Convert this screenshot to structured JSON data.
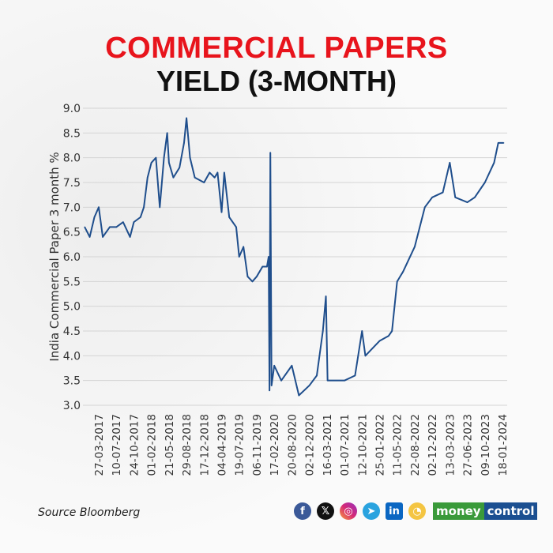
{
  "title_line1": "COMMERCIAL PAPERS",
  "title_line2": "YIELD (3-MONTH)",
  "source": "Source Bloomberg",
  "brand": {
    "part1": "money",
    "part2": "control"
  },
  "social_icons": [
    "facebook-icon",
    "x-icon",
    "instagram-icon",
    "telegram-icon",
    "linkedin-icon",
    "koo-icon"
  ],
  "colors": {
    "title_red": "#e8141c",
    "line": "#1f4e8c"
  },
  "chart_data": {
    "type": "line",
    "title": "COMMERCIAL PAPERS YIELD (3-MONTH)",
    "ylabel": "India Commercial Paper 3 month %",
    "xlabel": "",
    "ylim": [
      3.0,
      9.0
    ],
    "yticks": [
      "3.0",
      "3.5",
      "4.0",
      "4.5",
      "5.0",
      "5.5",
      "6.0",
      "6.5",
      "7.0",
      "7.5",
      "8.0",
      "8.5",
      "9.0"
    ],
    "xticks": [
      "27-03-2017",
      "10-07-2017",
      "24-10-2017",
      "01-02-2018",
      "21-05-2018",
      "29-08-2018",
      "17-12-2018",
      "04-04-2019",
      "19-07-2019",
      "06-11-2019",
      "17-02-2020",
      "20-08-2020",
      "02-12-2020",
      "16-03-2021",
      "01-07-2021",
      "12-10-2021",
      "25-01-2022",
      "11-05-2022",
      "22-08-2022",
      "02-12-2022",
      "13-03-2023",
      "27-06-2023",
      "09-10-2023",
      "18-01-2024"
    ],
    "grid": "horizontal",
    "series": [
      {
        "points": [
          [
            "2017-01-02",
            6.6
          ],
          [
            "2017-02-01",
            6.4
          ],
          [
            "2017-03-01",
            6.8
          ],
          [
            "2017-03-27",
            7.0
          ],
          [
            "2017-04-20",
            6.4
          ],
          [
            "2017-06-01",
            6.6
          ],
          [
            "2017-07-10",
            6.6
          ],
          [
            "2017-08-20",
            6.7
          ],
          [
            "2017-10-01",
            6.4
          ],
          [
            "2017-10-24",
            6.7
          ],
          [
            "2017-12-01",
            6.8
          ],
          [
            "2017-12-20",
            7.0
          ],
          [
            "2018-01-10",
            7.6
          ],
          [
            "2018-02-01",
            7.9
          ],
          [
            "2018-03-01",
            8.0
          ],
          [
            "2018-03-25",
            7.0
          ],
          [
            "2018-04-20",
            8.0
          ],
          [
            "2018-05-10",
            8.5
          ],
          [
            "2018-05-21",
            7.9
          ],
          [
            "2018-06-15",
            7.6
          ],
          [
            "2018-07-20",
            7.8
          ],
          [
            "2018-08-15",
            8.3
          ],
          [
            "2018-08-29",
            8.8
          ],
          [
            "2018-09-20",
            8.0
          ],
          [
            "2018-10-20",
            7.6
          ],
          [
            "2018-12-17",
            7.5
          ],
          [
            "2019-01-20",
            7.7
          ],
          [
            "2019-02-20",
            7.6
          ],
          [
            "2019-03-10",
            7.7
          ],
          [
            "2019-04-04",
            6.9
          ],
          [
            "2019-04-20",
            7.7
          ],
          [
            "2019-05-20",
            6.8
          ],
          [
            "2019-07-01",
            6.6
          ],
          [
            "2019-07-19",
            6.0
          ],
          [
            "2019-08-15",
            6.2
          ],
          [
            "2019-09-10",
            5.6
          ],
          [
            "2019-10-10",
            5.5
          ],
          [
            "2019-11-06",
            5.6
          ],
          [
            "2019-12-10",
            5.8
          ],
          [
            "2020-01-05",
            5.8
          ],
          [
            "2020-01-15",
            6.0
          ],
          [
            "2020-01-20",
            3.3
          ],
          [
            "2020-01-25",
            8.1
          ],
          [
            "2020-02-01",
            3.4
          ],
          [
            "2020-02-17",
            3.8
          ],
          [
            "2020-05-01",
            3.5
          ],
          [
            "2020-08-20",
            3.8
          ],
          [
            "2020-10-01",
            3.2
          ],
          [
            "2020-12-02",
            3.4
          ],
          [
            "2021-01-15",
            3.6
          ],
          [
            "2021-02-20",
            4.5
          ],
          [
            "2021-03-10",
            5.2
          ],
          [
            "2021-03-20",
            3.5
          ],
          [
            "2021-07-01",
            3.5
          ],
          [
            "2021-09-01",
            3.6
          ],
          [
            "2021-10-12",
            4.5
          ],
          [
            "2021-11-01",
            4.0
          ],
          [
            "2022-01-25",
            4.3
          ],
          [
            "2022-03-20",
            4.4
          ],
          [
            "2022-04-10",
            4.5
          ],
          [
            "2022-05-11",
            5.5
          ],
          [
            "2022-06-15",
            5.7
          ],
          [
            "2022-08-22",
            6.2
          ],
          [
            "2022-10-20",
            7.0
          ],
          [
            "2022-12-02",
            7.2
          ],
          [
            "2023-02-01",
            7.3
          ],
          [
            "2023-03-13",
            7.9
          ],
          [
            "2023-04-15",
            7.2
          ],
          [
            "2023-06-27",
            7.1
          ],
          [
            "2023-08-10",
            7.2
          ],
          [
            "2023-10-09",
            7.5
          ],
          [
            "2023-12-01",
            7.9
          ],
          [
            "2023-12-25",
            8.3
          ],
          [
            "2024-01-25",
            8.3
          ]
        ]
      }
    ]
  }
}
